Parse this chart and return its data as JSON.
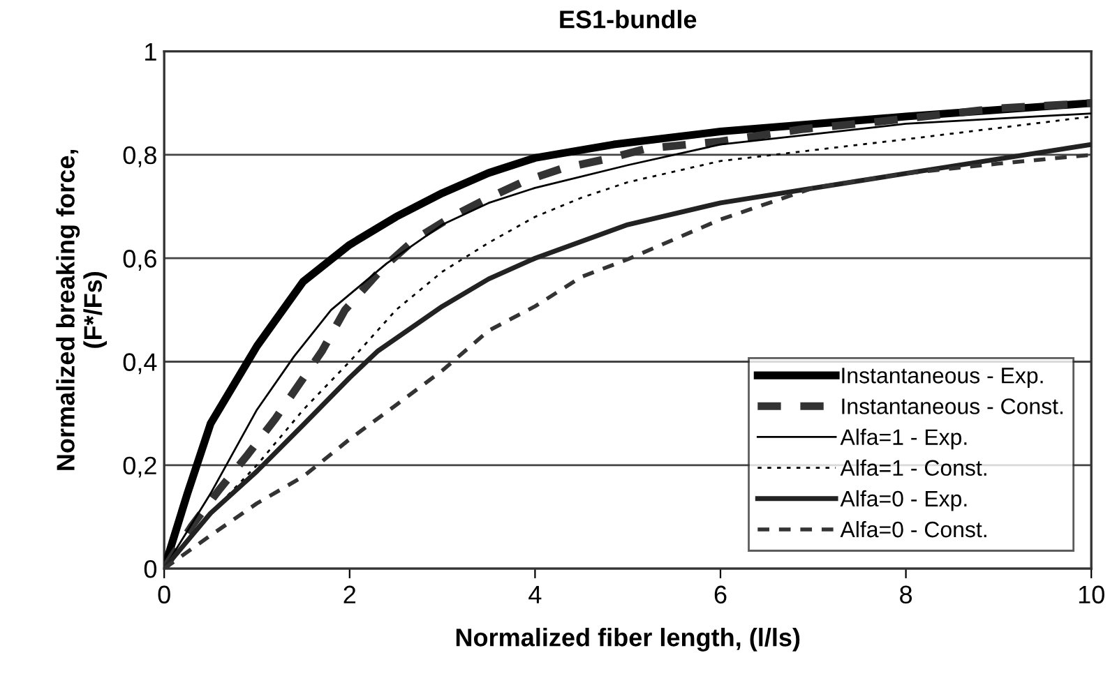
{
  "chart_data": {
    "type": "line",
    "title": "ES1-bundle",
    "xlabel": "Normalized fiber length, (l/ls)",
    "ylabel": "Normalized breaking force,\n(F*/Fs)",
    "xlim": [
      0,
      10
    ],
    "ylim": [
      0,
      1
    ],
    "xticks": [
      0,
      2,
      4,
      6,
      8,
      10
    ],
    "yticks": [
      0,
      {
        "value": 0.2,
        "label": "0,2"
      },
      {
        "value": 0.4,
        "label": "0,4"
      },
      {
        "value": 0.6,
        "label": "0,6"
      },
      {
        "value": 0.8,
        "label": "0,8"
      },
      1
    ],
    "grid": "y",
    "legend": "bottom right",
    "marker": "none",
    "series": [
      {
        "name": "Instantaneous - Exp.",
        "color": "#000000",
        "line_style": "solid",
        "x": [
          0,
          0.25,
          0.5,
          1,
          1.5,
          2,
          2.5,
          3,
          3.5,
          4,
          4.85,
          6,
          8,
          10
        ],
        "values": [
          0,
          0.145,
          0.28,
          0.43,
          0.555,
          0.626,
          0.68,
          0.726,
          0.765,
          0.794,
          0.82,
          0.845,
          0.874,
          0.9
        ]
      },
      {
        "name": "Instantaneous - Const.",
        "color": "#333333",
        "line_style": "dashed",
        "x": [
          0,
          0.3,
          0.6,
          0.9,
          1.2,
          1.45,
          1.7,
          1.95,
          2.35,
          2.7,
          3.1,
          3.5,
          3.9,
          4.3,
          4.8,
          5.2,
          6,
          6.9,
          7.7,
          9,
          10
        ],
        "values": [
          0,
          0.083,
          0.154,
          0.22,
          0.29,
          0.355,
          0.42,
          0.5,
          0.58,
          0.636,
          0.68,
          0.717,
          0.75,
          0.774,
          0.793,
          0.812,
          0.826,
          0.85,
          0.864,
          0.89,
          0.9
        ]
      },
      {
        "name": "Alfa=1 - Exp.",
        "color": "#000000",
        "line_style": "solid",
        "x": [
          0,
          0.5,
          1,
          1.4,
          1.8,
          2.4,
          3,
          3.5,
          4,
          5,
          6,
          8,
          10
        ],
        "values": [
          0,
          0.145,
          0.307,
          0.41,
          0.5,
          0.59,
          0.665,
          0.707,
          0.736,
          0.78,
          0.82,
          0.86,
          0.88
        ]
      },
      {
        "name": "Alfa=1 - Const.",
        "color": "#000000",
        "line_style": "dotted",
        "x": [
          0,
          0.5,
          1,
          1.5,
          2,
          2.5,
          3,
          3.5,
          4,
          4.5,
          5,
          6,
          8,
          10
        ],
        "values": [
          0,
          0.107,
          0.2,
          0.307,
          0.4,
          0.5,
          0.574,
          0.63,
          0.68,
          0.717,
          0.747,
          0.788,
          0.83,
          0.874
        ]
      },
      {
        "name": "Alfa=0 - Exp.",
        "color": "#222222",
        "line_style": "solid",
        "x": [
          0,
          0.5,
          1,
          1.5,
          2,
          2.3,
          3,
          3.5,
          4,
          5,
          6,
          8,
          10
        ],
        "values": [
          0,
          0.107,
          0.188,
          0.278,
          0.369,
          0.42,
          0.507,
          0.56,
          0.6,
          0.665,
          0.707,
          0.764,
          0.82
        ]
      },
      {
        "name": "Alfa=0 - Const.",
        "color": "#333333",
        "line_style": "dashed",
        "x": [
          0,
          0.5,
          1,
          1.5,
          2,
          2.5,
          3,
          3.5,
          4,
          4.5,
          5,
          6,
          7,
          8,
          9,
          10
        ],
        "values": [
          0,
          0.064,
          0.126,
          0.178,
          0.25,
          0.316,
          0.383,
          0.46,
          0.507,
          0.564,
          0.598,
          0.675,
          0.736,
          0.764,
          0.783,
          0.8
        ]
      }
    ]
  }
}
